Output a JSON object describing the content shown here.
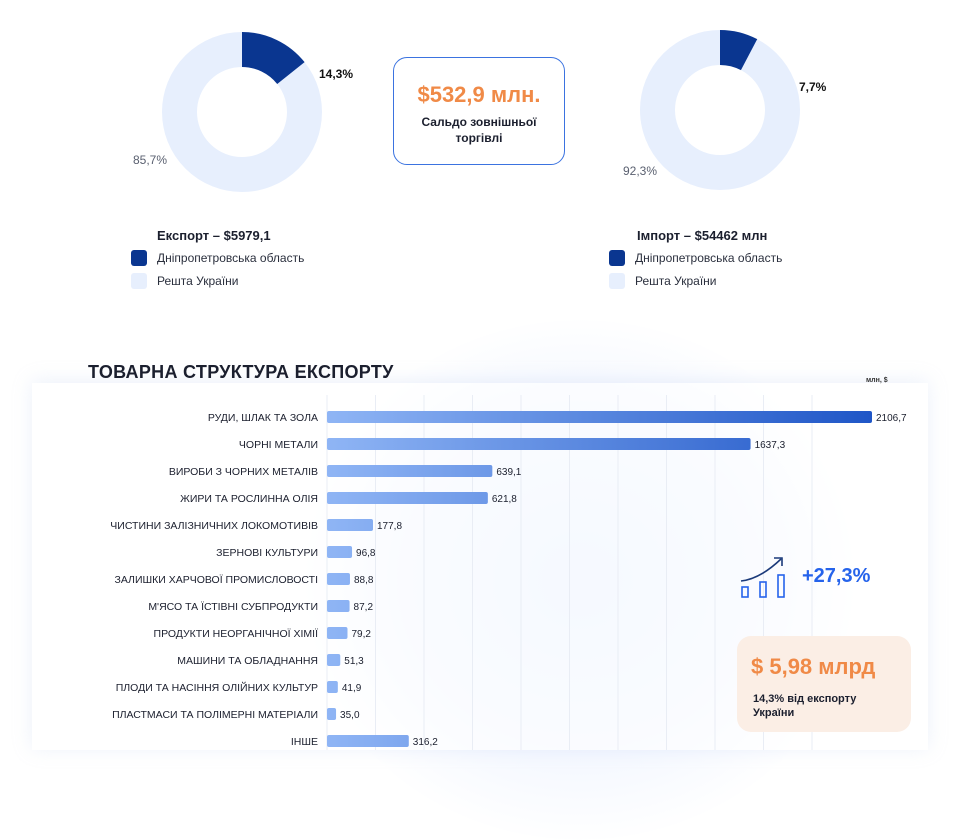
{
  "colors": {
    "region": "#0a3690",
    "rest": "#e7effd",
    "accent": "#f08a47",
    "blue": "#2563eb"
  },
  "export_donut": {
    "region_pct": 14.3,
    "rest_pct": 85.7,
    "region_label": "14,3%",
    "rest_label": "85,7%"
  },
  "import_donut": {
    "region_pct": 7.7,
    "rest_pct": 92.3,
    "region_label": "7,7%",
    "rest_label": "92,3%"
  },
  "balance": {
    "amount": "$532,9 млн.",
    "label": "Сальдо зовнішньої торгівлі"
  },
  "export_legend": {
    "title": "Експорт – $5979,1",
    "region": "Дніпропетровська область",
    "rest": "Решта України"
  },
  "import_legend": {
    "title": "Імпорт – $54462 млн",
    "region": "Дніпропетровська область",
    "rest": "Решта України"
  },
  "chart_data": {
    "type": "bar",
    "orientation": "horizontal",
    "title": "ТОВАРНА СТРУКТУРА ЕКСПОРТУ",
    "unit": "млн, $",
    "categories": [
      "РУДИ, ШЛАК ТА ЗОЛА",
      "ЧОРНІ МЕТАЛИ",
      "ВИРОБИ З ЧОРНИХ МЕТАЛІВ",
      "ЖИРИ ТА РОСЛИННА ОЛІЯ",
      "ЧИСТИНИ ЗАЛІЗНИЧНИХ ЛОКОМОТИВІВ",
      "ЗЕРНОВІ КУЛЬТУРИ",
      "ЗАЛИШКИ ХАРЧОВОЇ ПРОМИСЛОВОСТІ",
      "М'ЯСО ТА ЇСТІВНІ СУБПРОДУКТИ",
      "ПРОДУКТИ НЕОРГАНІЧНОЇ ХІМІЇ",
      "МАШИНИ ТА ОБЛАДНАННЯ",
      "ПЛОДИ ТА НАСІННЯ ОЛІЙНИХ КУЛЬТУР",
      "ПЛАСТМАСИ ТА ПОЛІМЕРНІ МАТЕРІАЛИ",
      "ІНШЕ"
    ],
    "values": [
      2106.7,
      1637.3,
      639.1,
      621.8,
      177.8,
      96.8,
      88.8,
      87.2,
      79.2,
      51.3,
      41.9,
      35.0,
      316.2
    ],
    "value_labels": [
      "2106,7",
      "1637,3",
      "639,1",
      "621,8",
      "177,8",
      "96,8",
      "88,8",
      "87,2",
      "79,2",
      "51,3",
      "41,9",
      "35,0",
      "316,2"
    ],
    "xlim": [
      0,
      2106.7
    ],
    "grid": true
  },
  "growth": {
    "value": "+27,3%",
    "icon": "growth-chart-icon"
  },
  "summary": {
    "amount": "$ 5,98 млрд",
    "note": "14,3% від експорту України"
  }
}
